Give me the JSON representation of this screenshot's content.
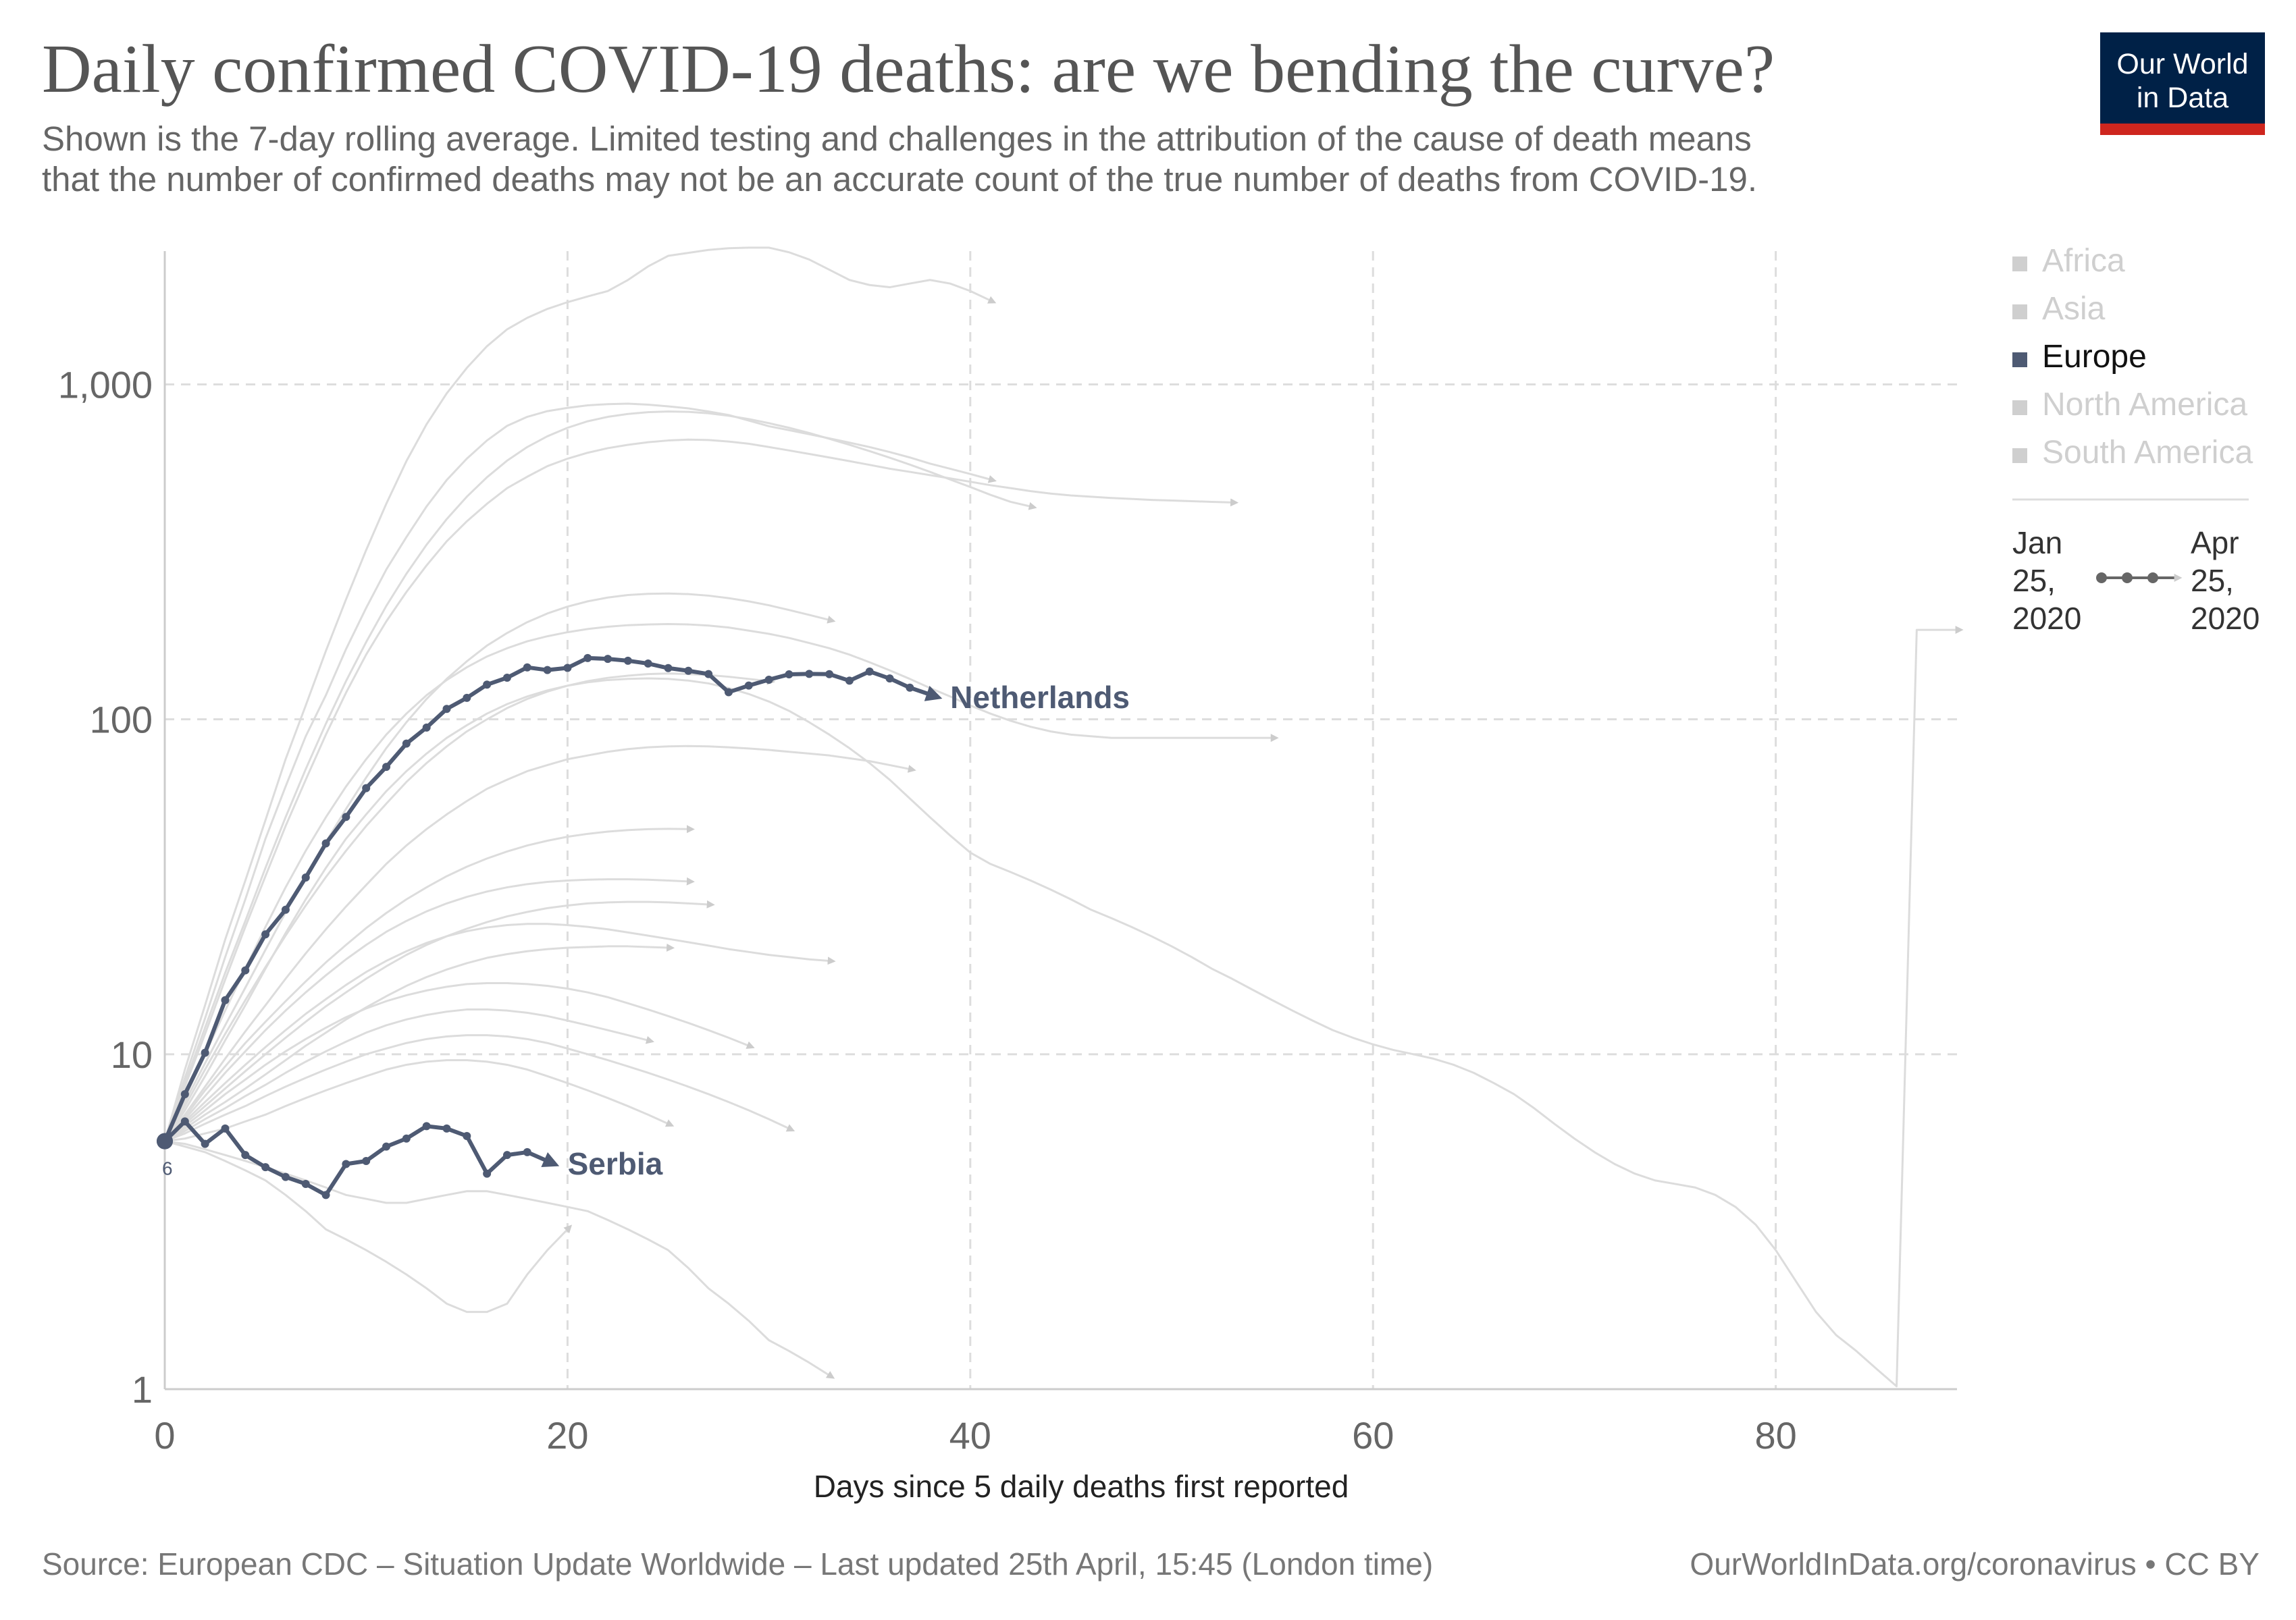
{
  "header": {
    "title": "Daily confirmed COVID-19 deaths: are we bending the curve?",
    "subtitle_line1": "Shown is the 7-day rolling average. Limited testing and challenges in the attribution of the cause of death means",
    "subtitle_line2": "that the number of confirmed deaths may not be an accurate count of the true number of deaths from COVID-19.",
    "logo_line1": "Our World",
    "logo_line2": "in Data"
  },
  "footer": {
    "source": "Source: European CDC – Situation Update Worldwide – Last updated 25th April, 15:45 (London time)",
    "attribution": "OurWorldInData.org/coronavirus • CC BY"
  },
  "colors": {
    "highlight": "#4e5a73",
    "background_line": "#dcdcdc",
    "legend_muted": "#cfcfcf",
    "grid": "#dddddd",
    "logo_bg": "#002147",
    "logo_accent": "#ce261e"
  },
  "legend": {
    "regions": [
      {
        "label": "Africa",
        "active": false
      },
      {
        "label": "Asia",
        "active": false
      },
      {
        "label": "Europe",
        "active": true
      },
      {
        "label": "North America",
        "active": false
      },
      {
        "label": "South America",
        "active": false
      }
    ],
    "timeline_start": [
      "Jan",
      "25,",
      "2020"
    ],
    "timeline_end": [
      "Apr",
      "25,",
      "2020"
    ]
  },
  "chart_data": {
    "type": "line",
    "title": "Daily confirmed COVID-19 deaths: are we bending the curve?",
    "xlabel": "Days since 5 daily deaths first reported",
    "ylabel": "",
    "yscale": "log",
    "xlim": [
      0,
      89
    ],
    "ylim": [
      1,
      2500
    ],
    "x_ticks": [
      0,
      20,
      40,
      60,
      80
    ],
    "y_ticks": [
      1,
      10,
      100,
      1000
    ],
    "y_tick_labels": [
      "1",
      "10",
      "100",
      "1,000"
    ],
    "grid": true,
    "start_value_label": "6",
    "series": [
      {
        "name": "Netherlands",
        "highlighted": true,
        "values": [
          5.5,
          7.6,
          10.1,
          14.5,
          17.8,
          22.8,
          27,
          33.7,
          42.6,
          51.1,
          62.3,
          72.1,
          84.6,
          94.5,
          107.4,
          115.9,
          126.9,
          133.1,
          142.9,
          140.3,
          142.4,
          152.4,
          151.5,
          149.6,
          146.7,
          142.2,
          139.6,
          136.5,
          120.5,
          126.1,
          131.3,
          136.2,
          136.6,
          136.4,
          130.4,
          138.9,
          132.4,
          124.3,
          118.6
        ]
      },
      {
        "name": "Serbia",
        "highlighted": true,
        "values": [
          5.5,
          6.3,
          5.4,
          6,
          5,
          4.6,
          4.3,
          4.1,
          3.8,
          4.7,
          4.8,
          5.3,
          5.6,
          6.1,
          6,
          5.7,
          4.4,
          5,
          5.1,
          4.8
        ]
      },
      {
        "name": "",
        "highlighted": false,
        "values": [
          5.5,
          8.5,
          12.8,
          19.5,
          29,
          44,
          63,
          89,
          118,
          162,
          215,
          280,
          350,
          432,
          518,
          600,
          680,
          752,
          800,
          832,
          851,
          866,
          873,
          876,
          870,
          860,
          848,
          830,
          810,
          780,
          750,
          730,
          710,
          690,
          670,
          650,
          628,
          605,
          580,
          560,
          540,
          520
        ]
      },
      {
        "name": "",
        "highlighted": false,
        "values": [
          5.5,
          9,
          14,
          22,
          33,
          50,
          76,
          110,
          160,
          228,
          320,
          440,
          590,
          760,
          940,
          1120,
          1300,
          1460,
          1580,
          1680,
          1760,
          1830,
          1900,
          2050,
          2250,
          2420,
          2470,
          2520,
          2550,
          2560,
          2560,
          2480,
          2360,
          2200,
          2050,
          1980,
          1950,
          2000,
          2050,
          2000,
          1900,
          1780
        ]
      },
      {
        "name": "",
        "highlighted": false,
        "values": [
          5.5,
          8,
          11.5,
          16.7,
          24,
          34,
          48,
          66,
          90,
          120,
          156,
          196,
          240,
          288,
          340,
          390,
          440,
          490,
          530,
          570,
          600,
          625,
          645,
          660,
          672,
          680,
          684,
          682,
          675,
          665,
          650,
          635,
          620,
          605,
          590,
          575,
          560,
          548,
          536,
          524,
          512,
          500,
          490,
          480,
          472,
          466,
          462,
          458,
          455,
          452,
          450,
          448,
          446,
          444
        ]
      },
      {
        "name": "",
        "highlighted": false,
        "values": [
          5.5,
          8.2,
          12,
          17.5,
          25,
          36,
          51,
          71,
          97,
          130,
          170,
          218,
          272,
          332,
          396,
          462,
          528,
          592,
          650,
          700,
          742,
          776,
          800,
          816,
          826,
          830,
          828,
          820,
          806,
          788,
          766,
          742,
          716,
          688,
          660,
          632,
          604,
          576,
          548,
          520,
          494,
          468,
          446,
          432
        ]
      },
      {
        "name": "",
        "highlighted": false,
        "values": [
          5.5,
          7.4,
          10,
          13.5,
          18,
          24,
          31.5,
          40.5,
          51,
          63,
          76,
          90,
          104,
          118,
          131,
          143,
          154,
          163,
          171,
          177,
          182,
          186,
          189,
          191,
          192,
          192.5,
          192,
          190.5,
          188,
          184,
          180,
          175,
          169,
          163,
          156,
          148,
          140,
          132,
          124,
          117,
          110,
          104,
          99,
          95,
          92,
          90,
          89,
          88,
          88,
          88,
          88,
          88,
          88,
          88,
          88,
          88
        ]
      },
      {
        "name": "",
        "highlighted": false,
        "values": [
          5.5,
          7.2,
          9.4,
          12.2,
          15.8,
          20.5,
          26.5,
          34,
          43,
          54,
          67,
          82,
          98,
          115,
          132,
          149,
          166,
          181,
          195,
          207,
          217,
          225,
          231,
          235,
          237,
          237.5,
          236.5,
          234,
          230,
          225,
          219,
          212,
          205,
          198
        ]
      },
      {
        "name": "",
        "highlighted": false,
        "values": [
          5.5,
          7,
          9,
          11.5,
          14.5,
          18.2,
          22.6,
          27.8,
          33.8,
          40.5,
          48,
          56,
          65,
          74,
          83,
          92,
          100,
          108,
          115,
          121,
          126,
          130,
          133,
          135,
          136.5,
          137,
          136.5,
          135.5,
          134,
          132,
          130
        ]
      },
      {
        "name": "",
        "highlighted": false,
        "values": [
          5.5,
          6.6,
          8,
          9.7,
          11.7,
          14,
          16.8,
          20,
          23.6,
          27.6,
          32,
          37,
          42,
          47,
          52,
          57,
          62,
          66,
          70,
          73,
          76,
          78,
          80,
          81.5,
          82.5,
          83,
          83.2,
          83,
          82.5,
          81.8,
          81,
          80,
          79,
          78,
          76.5,
          75,
          73,
          71
        ]
      },
      {
        "name": "",
        "highlighted": false,
        "values": [
          5.5,
          6.8,
          8.6,
          11,
          14,
          18,
          23,
          29,
          36,
          44,
          52,
          61,
          70,
          79,
          88,
          96,
          104,
          111,
          117,
          122,
          126,
          129,
          131,
          132,
          132.5,
          132,
          130.5,
          128,
          124,
          119,
          113,
          106,
          98,
          90,
          82,
          74,
          66,
          58,
          51,
          45,
          40,
          37,
          35,
          33,
          31,
          29,
          27,
          25.5,
          24,
          22.5,
          21,
          19.5,
          18,
          16.8,
          15.6,
          14.5,
          13.5,
          12.6,
          11.8,
          11.2,
          10.7,
          10.3,
          10,
          9.7,
          9.3,
          8.8,
          8.2,
          7.6,
          6.9,
          6.2,
          5.6,
          5.1,
          4.7,
          4.4,
          4.2,
          4.1,
          4,
          3.8,
          3.5,
          3.1,
          2.6,
          2.1,
          1.7,
          1.45,
          1.3,
          1.15,
          1.02,
          185,
          185,
          185
        ]
      },
      {
        "name": "",
        "highlighted": false,
        "values": [
          5.5,
          6.4,
          7.5,
          8.8,
          10.2,
          11.8,
          13.5,
          15.3,
          17.2,
          19.2,
          21.2,
          23.2,
          25,
          26.7,
          28.2,
          29.5,
          30.6,
          31.5,
          32.2,
          32.7,
          33,
          33.2,
          33.3,
          33.3,
          33.2,
          33,
          32.8
        ]
      },
      {
        "name": "",
        "highlighted": false,
        "values": [
          5.5,
          6.2,
          7,
          7.9,
          8.9,
          10,
          11.2,
          12.5,
          13.9,
          15.3,
          16.8,
          18.3,
          19.8,
          21.2,
          22.5,
          23.7,
          24.8,
          25.8,
          26.6,
          27.3,
          27.8,
          28.2,
          28.4,
          28.5,
          28.5,
          28.4,
          28.2,
          28
        ]
      },
      {
        "name": "",
        "highlighted": false,
        "values": [
          5.5,
          6,
          6.6,
          7.2,
          7.9,
          8.7,
          9.6,
          10.6,
          11.6,
          12.7,
          13.8,
          14.9,
          16,
          17,
          17.9,
          18.7,
          19.4,
          19.9,
          20.3,
          20.6,
          20.8,
          20.9,
          21,
          21,
          20.9,
          20.8
        ]
      },
      {
        "name": "",
        "highlighted": false,
        "values": [
          5.5,
          6.1,
          6.8,
          7.6,
          8.4,
          9.3,
          10.2,
          11.1,
          12,
          12.9,
          13.7,
          14.4,
          15,
          15.5,
          15.9,
          16.2,
          16.3,
          16.3,
          16.2,
          16,
          15.7,
          15.3,
          14.8,
          14.2,
          13.6,
          13,
          12.4,
          11.8,
          11.2,
          10.6
        ]
      },
      {
        "name": "",
        "highlighted": false,
        "values": [
          5.5,
          5.8,
          6.2,
          6.6,
          7,
          7.5,
          8,
          8.5,
          9,
          9.5,
          10,
          10.4,
          10.8,
          11.1,
          11.3,
          11.4,
          11.4,
          11.3,
          11.1,
          10.8,
          10.4,
          10,
          9.6,
          9.2,
          8.8,
          8.4,
          8,
          7.6,
          7.2,
          6.8,
          6.4,
          6
        ]
      },
      {
        "name": "",
        "highlighted": false,
        "values": [
          5.5,
          5.6,
          5.8,
          6,
          6.3,
          6.6,
          7,
          7.4,
          7.8,
          8.2,
          8.6,
          9,
          9.3,
          9.5,
          9.6,
          9.6,
          9.5,
          9.3,
          9,
          8.6,
          8.2,
          7.8,
          7.4,
          7,
          6.6,
          6.2
        ]
      },
      {
        "name": "",
        "highlighted": false,
        "values": [
          5.5,
          5.3,
          5.1,
          4.8,
          4.5,
          4.2,
          3.8,
          3.4,
          3,
          2.8,
          2.6,
          2.4,
          2.2,
          2,
          1.8,
          1.7,
          1.7,
          1.8,
          2.2,
          2.6,
          3
        ]
      },
      {
        "name": "",
        "highlighted": false,
        "values": [
          5.5,
          5.4,
          5.2,
          5,
          4.8,
          4.6,
          4.4,
          4.2,
          4,
          3.8,
          3.7,
          3.6,
          3.6,
          3.7,
          3.8,
          3.9,
          3.9,
          3.8,
          3.7,
          3.6,
          3.5,
          3.4,
          3.2,
          3,
          2.8,
          2.6,
          2.3,
          2,
          1.8,
          1.6,
          1.4,
          1.3,
          1.2,
          1.1
        ]
      },
      {
        "name": "",
        "highlighted": false,
        "values": [
          5.5,
          6.5,
          7.8,
          9.2,
          10.8,
          12.5,
          14.4,
          16.5,
          18.8,
          21.2,
          23.8,
          26.4,
          29,
          31.5,
          34,
          36.3,
          38.4,
          40.3,
          42,
          43.4,
          44.6,
          45.5,
          46.2,
          46.7,
          47,
          47.1,
          47
        ]
      },
      {
        "name": "",
        "highlighted": false,
        "values": [
          5.5,
          5.9,
          6.4,
          6.9,
          7.5,
          8.1,
          8.8,
          9.5,
          10.2,
          10.9,
          11.6,
          12.2,
          12.7,
          13.1,
          13.4,
          13.6,
          13.6,
          13.5,
          13.3,
          13,
          12.6,
          12.2,
          11.8,
          11.4,
          11
        ]
      },
      {
        "name": "",
        "highlighted": false,
        "values": [
          5.5,
          6.3,
          7.2,
          8.2,
          9.3,
          10.5,
          11.8,
          13.2,
          14.6,
          16.1,
          17.6,
          19,
          20.3,
          21.5,
          22.5,
          23.3,
          23.9,
          24.3,
          24.5,
          24.5,
          24.3,
          24,
          23.6,
          23.1,
          22.6,
          22.1,
          21.6,
          21.1,
          20.6,
          20.2,
          19.8,
          19.5,
          19.2,
          19
        ]
      }
    ]
  }
}
